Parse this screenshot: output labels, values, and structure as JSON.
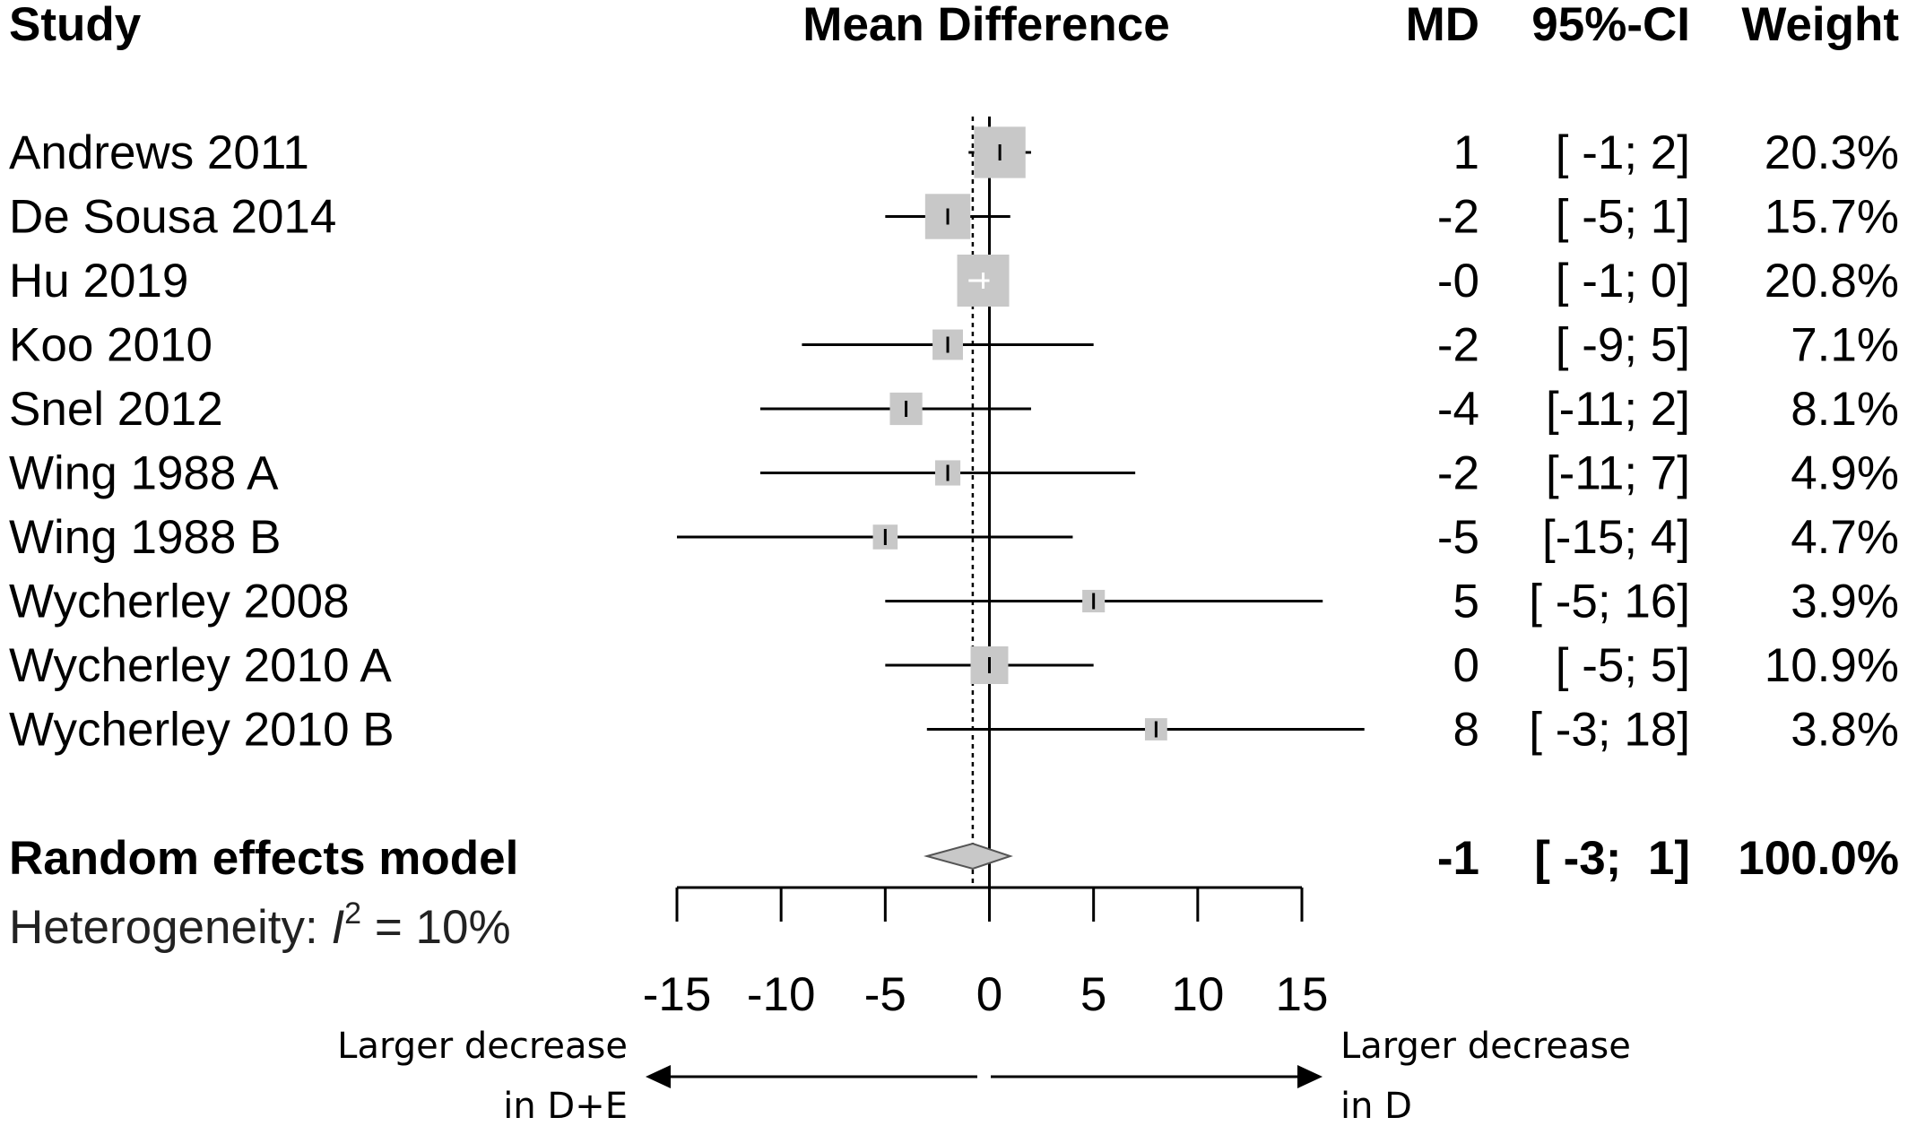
{
  "chart_data": {
    "type": "forest",
    "headers": {
      "study": "Study",
      "effect": "Mean Difference",
      "md": "MD",
      "ci": "95%-CI",
      "weight": "Weight"
    },
    "studies": [
      {
        "name": "Andrews 2011",
        "md": 0.5,
        "lower": -1,
        "upper": 2,
        "md_text": "1",
        "ci_text": "[ -1;  2]",
        "weight": 20.3,
        "weight_text": "20.3%"
      },
      {
        "name": "De Sousa 2014",
        "md": -2,
        "lower": -5,
        "upper": 1,
        "md_text": "-2",
        "ci_text": "[ -5;  1]",
        "weight": 15.7,
        "weight_text": "15.7%"
      },
      {
        "name": "Hu 2019",
        "md": -0.3,
        "lower": -1,
        "upper": 0,
        "md_text": "-0",
        "ci_text": "[ -1;  0]",
        "weight": 20.8,
        "weight_text": "20.8%"
      },
      {
        "name": "Koo 2010",
        "md": -2,
        "lower": -9,
        "upper": 5,
        "md_text": "-2",
        "ci_text": "[ -9;  5]",
        "weight": 7.1,
        "weight_text": "7.1%"
      },
      {
        "name": "Snel 2012",
        "md": -4,
        "lower": -11,
        "upper": 2,
        "md_text": "-4",
        "ci_text": "[-11;  2]",
        "weight": 8.1,
        "weight_text": "8.1%"
      },
      {
        "name": "Wing 1988 A",
        "md": -2,
        "lower": -11,
        "upper": 7,
        "md_text": "-2",
        "ci_text": "[-11;  7]",
        "weight": 4.9,
        "weight_text": "4.9%"
      },
      {
        "name": "Wing 1988 B",
        "md": -5,
        "lower": -15,
        "upper": 4,
        "md_text": "-5",
        "ci_text": "[-15;  4]",
        "weight": 4.7,
        "weight_text": "4.7%"
      },
      {
        "name": "Wycherley 2008",
        "md": 5,
        "lower": -5,
        "upper": 16,
        "md_text": "5",
        "ci_text": "[ -5; 16]",
        "weight": 3.9,
        "weight_text": "3.9%"
      },
      {
        "name": "Wycherley 2010 A",
        "md": 0,
        "lower": -5,
        "upper": 5,
        "md_text": "0",
        "ci_text": "[ -5;  5]",
        "weight": 10.9,
        "weight_text": "10.9%"
      },
      {
        "name": "Wycherley 2010 B",
        "md": 8,
        "lower": -3,
        "upper": 18,
        "md_text": "8",
        "ci_text": "[ -3; 18]",
        "weight": 3.8,
        "weight_text": "3.8%"
      }
    ],
    "summary": {
      "name": "Random effects model",
      "md": -0.8,
      "lower": -3,
      "upper": 1,
      "md_text": "-1",
      "ci_text": "[ -3;  1]",
      "weight_text": "100.0%"
    },
    "heterogeneity": {
      "prefix": "Heterogeneity: ",
      "stat": "I",
      "power": "2",
      "suffix": " = 10%"
    },
    "x_axis": {
      "range": [
        -15,
        15
      ],
      "ticks": [
        -15,
        -10,
        -5,
        0,
        5,
        10,
        15
      ],
      "tick_labels": [
        "-15",
        "-10",
        "-5",
        "0",
        "5",
        "10",
        "15"
      ],
      "reference_line": 0,
      "summary_line": -0.8
    },
    "direction_labels": {
      "left_line1": "Larger decrease",
      "left_line2": "in D+E",
      "right_line1": "Larger decrease",
      "right_line2": "in D"
    },
    "colors": {
      "box": "#c8c8c8",
      "diamond": "#c8c8c8",
      "line": "#000000"
    }
  }
}
